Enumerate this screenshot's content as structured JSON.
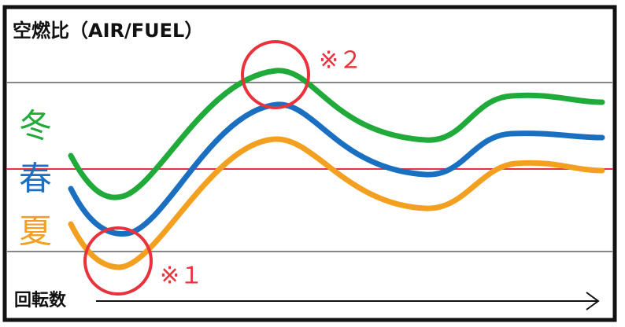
{
  "title": "空燃比（AIR/FUEL）",
  "legend": [
    "冬",
    "春",
    "夏"
  ],
  "annotations": [
    "※２",
    "※１"
  ],
  "x_axis_label": "回転数"
}
